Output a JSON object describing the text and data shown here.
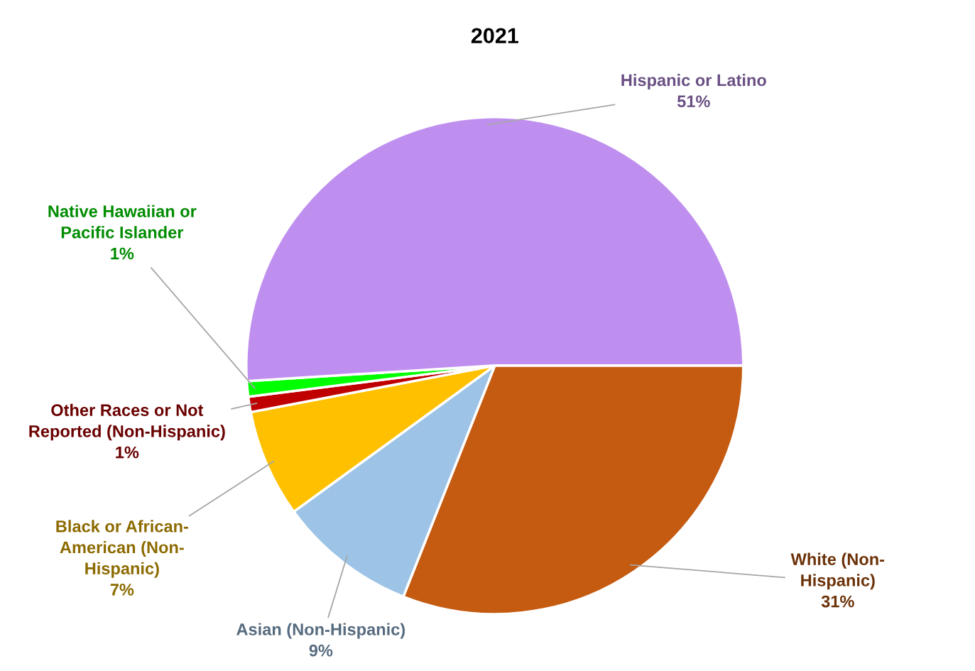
{
  "chart_data": {
    "type": "pie",
    "title": "2021",
    "categories": [
      "White (Non-\nHispanic)",
      "Asian (Non-Hispanic)",
      "Black or African-\nAmerican (Non-\nHispanic)",
      "Other Races or Not\nReported (Non-Hispanic)",
      "Native Hawaiian or\nPacific Islander",
      "Hispanic or Latino"
    ],
    "values": [
      31,
      9,
      7,
      1,
      1,
      51
    ],
    "colors": [
      "#c55a11",
      "#9dc3e6",
      "#ffc000",
      "#c00000",
      "#00ff00",
      "#bf8fef"
    ],
    "value_labels": [
      "31%",
      "9%",
      "7%",
      "1%",
      "1%",
      "51%"
    ]
  }
}
